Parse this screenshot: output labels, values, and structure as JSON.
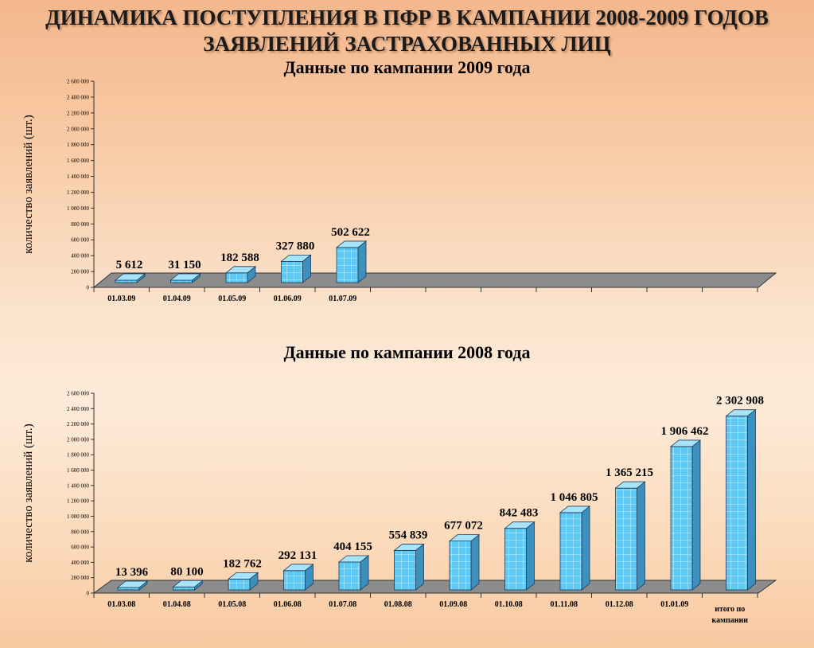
{
  "slide": {
    "title_line1": "ДИНАМИКА ПОСТУПЛЕНИЯ В ПФР В КАМПАНИИ 2008-2009 ГОДОВ",
    "title_line2": "ЗАЯВЛЕНИЙ ЗАСТРАХОВАННЫХ ЛИЦ"
  },
  "colors": {
    "bar_front": "#5ec9f2",
    "bar_side": "#3d8fbd",
    "bar_top": "#a7e4fa",
    "floor": "#8c8c8c",
    "grid": "#b5b5b5"
  },
  "chart_data": [
    {
      "type": "bar",
      "title": "Данные по кампании 2009 года",
      "ylabel": "количество заявлений (шт.)",
      "xlabel": "",
      "categories": [
        "01.03.09",
        "01.04.09",
        "01.05.09",
        "01.06.09",
        "01.07.09",
        "",
        "",
        "",
        "",
        "",
        "",
        ""
      ],
      "values": [
        5612,
        31150,
        182588,
        327880,
        502622,
        null,
        null,
        null,
        null,
        null,
        null,
        null
      ],
      "data_labels": [
        "5 612",
        "31 150",
        "182 588",
        "327 880",
        "502 622",
        "",
        "",
        "",
        "",
        "",
        "",
        ""
      ],
      "ylim": [
        0,
        2600000
      ],
      "yticks": [
        "0",
        "200 000",
        "400 000",
        "600 000",
        "800 000",
        "1 000 000",
        "1 200 000",
        "1 400 000",
        "1 600 000",
        "1 800 000",
        "2 000 000",
        "2 200 000",
        "2 400 000",
        "2 600 000"
      ],
      "style": "3d-column",
      "grid": false,
      "legend": "none"
    },
    {
      "type": "bar",
      "title": "Данные по кампании 2008 года",
      "ylabel": "количество заявлений (шт.)",
      "xlabel": "",
      "categories": [
        "01.03.08",
        "01.04.08",
        "01.05.08",
        "01.06.08",
        "01.07.08",
        "01.08.08",
        "01.09.08",
        "01.10.08",
        "01.11.08",
        "01.12.08",
        "01.01.09",
        "итого по кампании"
      ],
      "values": [
        13396,
        80100,
        182762,
        292131,
        404155,
        554839,
        677072,
        842483,
        1046805,
        1365215,
        1906462,
        2302908
      ],
      "data_labels": [
        "13 396",
        "80 100",
        "182 762",
        "292 131",
        "404 155",
        "554 839",
        "677 072",
        "842 483",
        "1 046 805",
        "1 365 215",
        "1 906 462",
        "2 302 908"
      ],
      "ylim": [
        0,
        2600000
      ],
      "yticks": [
        "0",
        "200 000",
        "400 000",
        "600 000",
        "800 000",
        "1 000 000",
        "1 200 000",
        "1 400 000",
        "1 600 000",
        "1 800 000",
        "2 000 000",
        "2 200 000",
        "2 400 000",
        "2 600 000"
      ],
      "style": "3d-column",
      "grid": false,
      "legend": "none"
    }
  ]
}
